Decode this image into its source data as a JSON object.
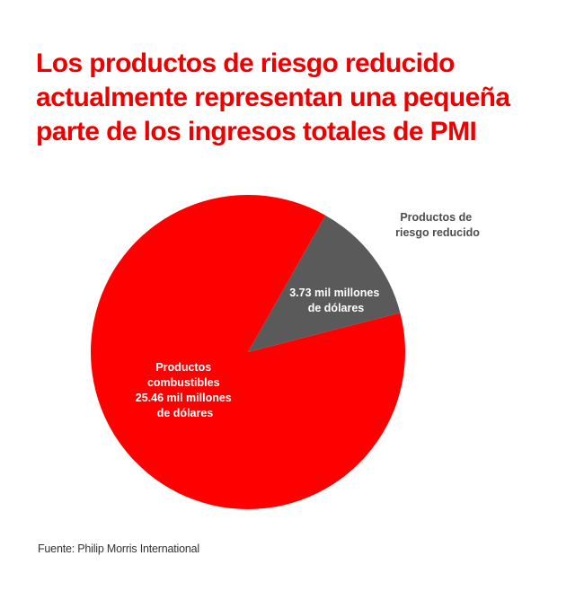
{
  "title": "Los productos de riesgo reducido actualmente representan una pequeña parte de los ingresos totales de PMI",
  "source": "Fuente: Philip Morris International",
  "colors": {
    "title": "#ee0000",
    "combustibles": "#ff0000",
    "riesgo_reducido": "#5a5a5a",
    "callout_text": "#4d4d4d",
    "slice_text": "#ffffff"
  },
  "chart_data": {
    "type": "pie",
    "unit": "mil millones de dólares",
    "slices": [
      {
        "category": "Productos combustibles",
        "value": 25.46,
        "label_lines": [
          "Productos",
          "combustibles",
          "25.46 mil millones",
          "de dólares"
        ]
      },
      {
        "category": "Productos de riesgo reducido",
        "value": 3.73,
        "label_lines": [
          "3.73 mil millones",
          "de dólares"
        ],
        "callout_lines": [
          "Productos de",
          "riesgo reducido"
        ]
      }
    ]
  }
}
